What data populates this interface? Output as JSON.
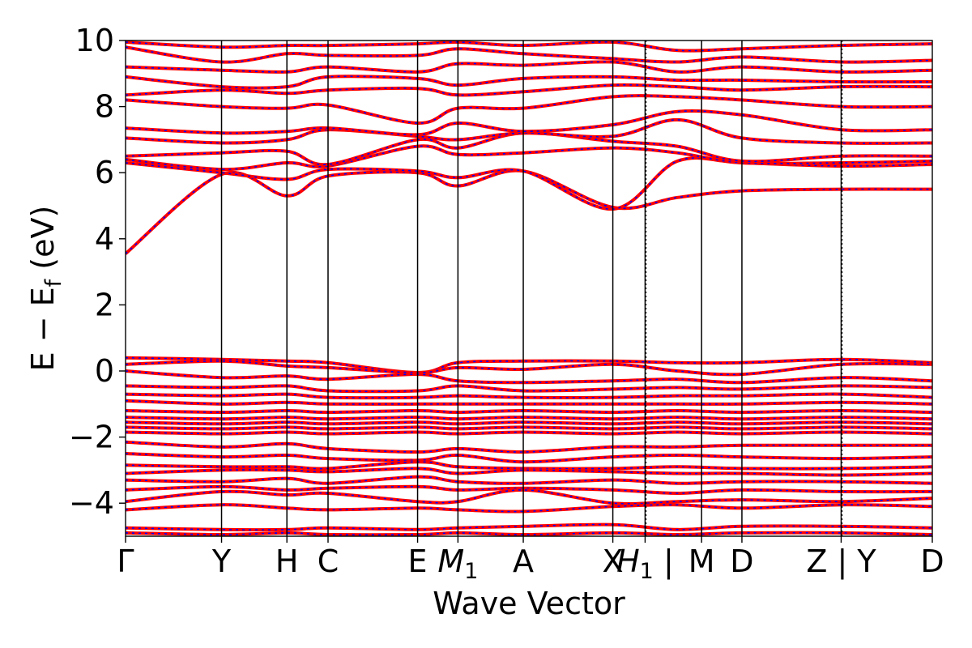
{
  "chart_data": {
    "type": "line",
    "title": "",
    "xlabel": "Wave Vector",
    "ylabel_main": "E − E",
    "ylabel_sub": "f",
    "ylabel_unit": "(eV)",
    "ylim": [
      -5,
      10
    ],
    "yticks": [
      10,
      8,
      6,
      4,
      2,
      0,
      -2,
      -4
    ],
    "ytick_labels": [
      "10",
      "8",
      "6",
      "4",
      "2",
      "0",
      "−2",
      "−4"
    ],
    "grid": false,
    "xticks": [
      {
        "label": "Γ",
        "pos": 0.0
      },
      {
        "label": "Y",
        "pos": 0.119
      },
      {
        "label": "H",
        "pos": 0.2
      },
      {
        "label": "C",
        "pos": 0.251
      },
      {
        "label": "E",
        "pos": 0.362
      },
      {
        "label": "M",
        "sub": "1",
        "italic": true,
        "pos": 0.412
      },
      {
        "label": "A",
        "pos": 0.493
      },
      {
        "label": "X",
        "pos": 0.604
      },
      {
        "label": "H",
        "sub": "1",
        "italic": true,
        "pos": 0.644,
        "plain_tail": " |",
        "separator": true
      },
      {
        "label": "M",
        "pos": 0.714,
        "sep_tick": true
      },
      {
        "label": "D",
        "pos": 0.764
      },
      {
        "label": "Z | Y",
        "pos": 0.887,
        "separator": true
      },
      {
        "label": "D",
        "pos": 1.0
      }
    ],
    "series": [
      {
        "color": "#ff0000",
        "style": "solid"
      },
      {
        "color": "#0000ff",
        "style": "dashed"
      }
    ],
    "bands": [
      {
        "x": [
          0.0,
          0.119,
          0.2,
          0.251,
          0.362,
          0.412,
          0.493,
          0.604,
          0.684,
          0.764,
          0.887,
          1.0
        ],
        "y": [
          3.55,
          5.95,
          5.3,
          5.9,
          6.0,
          5.6,
          6.05,
          4.95,
          5.25,
          5.45,
          5.5,
          5.5
        ]
      },
      {
        "x": [
          0.0,
          0.119,
          0.2,
          0.251,
          0.362,
          0.412,
          0.493,
          0.604,
          0.684,
          0.764,
          0.887,
          1.0
        ],
        "y": [
          6.3,
          6.0,
          5.8,
          6.1,
          6.05,
          5.85,
          6.05,
          4.9,
          6.35,
          6.3,
          6.2,
          6.25
        ]
      },
      {
        "x": [
          0.0,
          0.119,
          0.2,
          0.251,
          0.362,
          0.412,
          0.493,
          0.604,
          0.684,
          0.764,
          0.887,
          1.0
        ],
        "y": [
          6.4,
          6.1,
          6.3,
          6.2,
          6.8,
          6.55,
          6.6,
          6.75,
          6.6,
          6.3,
          6.3,
          6.35
        ]
      },
      {
        "x": [
          0.0,
          0.119,
          0.2,
          0.251,
          0.362,
          0.412,
          0.493,
          0.604,
          0.684,
          0.764,
          0.887,
          1.0
        ],
        "y": [
          6.5,
          6.6,
          6.65,
          6.25,
          7.0,
          6.75,
          7.2,
          6.95,
          6.8,
          6.35,
          6.5,
          6.5
        ]
      },
      {
        "x": [
          0.0,
          0.119,
          0.2,
          0.251,
          0.362,
          0.412,
          0.493,
          0.604,
          0.684,
          0.764,
          0.887,
          1.0
        ],
        "y": [
          7.05,
          6.9,
          7.0,
          7.3,
          7.1,
          7.0,
          7.2,
          7.1,
          7.6,
          7.05,
          6.9,
          6.9
        ]
      },
      {
        "x": [
          0.0,
          0.119,
          0.2,
          0.251,
          0.362,
          0.412,
          0.493,
          0.604,
          0.684,
          0.764,
          0.887,
          1.0
        ],
        "y": [
          7.35,
          7.2,
          7.25,
          7.35,
          7.15,
          7.5,
          7.25,
          7.45,
          7.85,
          7.75,
          7.3,
          7.3
        ]
      },
      {
        "x": [
          0.0,
          0.119,
          0.2,
          0.251,
          0.362,
          0.412,
          0.493,
          0.604,
          0.684,
          0.764,
          0.887,
          1.0
        ],
        "y": [
          8.2,
          8.0,
          7.95,
          8.05,
          7.5,
          7.95,
          7.95,
          8.3,
          8.3,
          8.2,
          8.0,
          8.0
        ]
      },
      {
        "x": [
          0.0,
          0.119,
          0.2,
          0.251,
          0.362,
          0.412,
          0.493,
          0.604,
          0.684,
          0.764,
          0.887,
          1.0
        ],
        "y": [
          8.35,
          8.5,
          8.4,
          8.5,
          8.55,
          8.35,
          8.45,
          8.65,
          8.6,
          8.5,
          8.6,
          8.6
        ]
      },
      {
        "x": [
          0.0,
          0.119,
          0.2,
          0.251,
          0.362,
          0.412,
          0.493,
          0.604,
          0.684,
          0.764,
          0.887,
          1.0
        ],
        "y": [
          8.9,
          8.6,
          8.6,
          8.9,
          8.85,
          8.65,
          8.85,
          8.9,
          8.8,
          8.8,
          8.75,
          8.75
        ]
      },
      {
        "x": [
          0.0,
          0.119,
          0.2,
          0.251,
          0.362,
          0.412,
          0.493,
          0.604,
          0.684,
          0.764,
          0.887,
          1.0
        ],
        "y": [
          9.2,
          9.1,
          9.05,
          9.2,
          9.05,
          9.3,
          9.25,
          9.35,
          9.05,
          9.2,
          9.05,
          9.1
        ]
      },
      {
        "x": [
          0.0,
          0.119,
          0.2,
          0.251,
          0.362,
          0.412,
          0.493,
          0.604,
          0.684,
          0.764,
          0.887,
          1.0
        ],
        "y": [
          9.8,
          9.35,
          9.6,
          9.55,
          9.55,
          9.75,
          9.6,
          9.45,
          9.35,
          9.5,
          9.35,
          9.4
        ]
      },
      {
        "x": [
          0.0,
          0.119,
          0.2,
          0.251,
          0.362,
          0.412,
          0.493,
          0.604,
          0.684,
          0.764,
          0.887,
          1.0
        ],
        "y": [
          9.95,
          9.8,
          9.85,
          9.85,
          9.9,
          9.95,
          9.85,
          9.95,
          9.7,
          9.75,
          9.85,
          9.9
        ]
      },
      {
        "x": [
          0.0,
          0.119,
          0.2,
          0.251,
          0.362,
          0.412,
          0.493,
          0.604,
          0.684,
          0.764,
          0.887,
          1.0
        ],
        "y": [
          0.4,
          0.35,
          0.3,
          0.25,
          -0.05,
          0.25,
          0.3,
          0.3,
          0.25,
          0.25,
          0.35,
          0.25
        ]
      },
      {
        "x": [
          0.0,
          0.119,
          0.2,
          0.251,
          0.362,
          0.412,
          0.493,
          0.604,
          0.684,
          0.764,
          0.887,
          1.0
        ],
        "y": [
          0.2,
          0.3,
          0.15,
          0.1,
          -0.05,
          0.1,
          0.05,
          0.2,
          0.0,
          -0.1,
          0.2,
          0.2
        ]
      },
      {
        "x": [
          0.0,
          0.119,
          0.2,
          0.251,
          0.362,
          0.412,
          0.493,
          0.604,
          0.684,
          0.764,
          0.887,
          1.0
        ],
        "y": [
          0.0,
          -0.2,
          -0.15,
          -0.25,
          -0.1,
          -0.3,
          -0.35,
          -0.3,
          -0.25,
          -0.35,
          -0.2,
          -0.3
        ]
      },
      {
        "x": [
          0.0,
          0.119,
          0.2,
          0.251,
          0.362,
          0.412,
          0.493,
          0.604,
          0.684,
          0.764,
          0.887,
          1.0
        ],
        "y": [
          -0.45,
          -0.5,
          -0.45,
          -0.6,
          -0.6,
          -0.45,
          -0.6,
          -0.55,
          -0.5,
          -0.55,
          -0.45,
          -0.5
        ]
      },
      {
        "x": [
          0.0,
          0.119,
          0.2,
          0.251,
          0.362,
          0.412,
          0.493,
          0.604,
          0.684,
          0.764,
          0.887,
          1.0
        ],
        "y": [
          -0.7,
          -0.75,
          -0.7,
          -0.8,
          -0.8,
          -0.75,
          -0.8,
          -0.8,
          -0.75,
          -0.75,
          -0.7,
          -0.8
        ]
      },
      {
        "x": [
          0.0,
          0.119,
          0.2,
          0.251,
          0.362,
          0.412,
          0.493,
          0.604,
          0.684,
          0.764,
          0.887,
          1.0
        ],
        "y": [
          -0.9,
          -1.0,
          -0.95,
          -1.0,
          -1.0,
          -1.0,
          -1.0,
          -1.0,
          -1.0,
          -1.0,
          -0.95,
          -1.0
        ]
      },
      {
        "x": [
          0.0,
          0.119,
          0.2,
          0.251,
          0.362,
          0.412,
          0.493,
          0.604,
          0.684,
          0.764,
          0.887,
          1.0
        ],
        "y": [
          -1.2,
          -1.25,
          -1.2,
          -1.25,
          -1.2,
          -1.25,
          -1.2,
          -1.25,
          -1.2,
          -1.25,
          -1.2,
          -1.25
        ]
      },
      {
        "x": [
          0.0,
          0.119,
          0.2,
          0.251,
          0.362,
          0.412,
          0.493,
          0.604,
          0.684,
          0.764,
          0.887,
          1.0
        ],
        "y": [
          -1.4,
          -1.45,
          -1.4,
          -1.45,
          -1.4,
          -1.45,
          -1.4,
          -1.45,
          -1.4,
          -1.45,
          -1.4,
          -1.45
        ]
      },
      {
        "x": [
          0.0,
          0.119,
          0.2,
          0.251,
          0.362,
          0.412,
          0.493,
          0.604,
          0.684,
          0.764,
          0.887,
          1.0
        ],
        "y": [
          -1.55,
          -1.6,
          -1.55,
          -1.6,
          -1.55,
          -1.6,
          -1.55,
          -1.6,
          -1.55,
          -1.6,
          -1.55,
          -1.6
        ]
      },
      {
        "x": [
          0.0,
          0.119,
          0.2,
          0.251,
          0.362,
          0.412,
          0.493,
          0.604,
          0.684,
          0.764,
          0.887,
          1.0
        ],
        "y": [
          -1.7,
          -1.75,
          -1.7,
          -1.75,
          -1.7,
          -1.75,
          -1.7,
          -1.75,
          -1.7,
          -1.75,
          -1.7,
          -1.75
        ]
      },
      {
        "x": [
          0.0,
          0.119,
          0.2,
          0.251,
          0.362,
          0.412,
          0.493,
          0.604,
          0.684,
          0.764,
          0.887,
          1.0
        ],
        "y": [
          -1.85,
          -1.9,
          -1.85,
          -1.9,
          -1.85,
          -1.9,
          -1.85,
          -1.9,
          -1.85,
          -1.9,
          -1.85,
          -1.9
        ]
      },
      {
        "x": [
          0.0,
          0.119,
          0.2,
          0.251,
          0.362,
          0.412,
          0.493,
          0.604,
          0.684,
          0.764,
          0.887,
          1.0
        ],
        "y": [
          -2.15,
          -2.3,
          -2.2,
          -2.35,
          -2.45,
          -2.35,
          -2.45,
          -2.3,
          -2.3,
          -2.25,
          -2.25,
          -2.25
        ]
      },
      {
        "x": [
          0.0,
          0.119,
          0.2,
          0.251,
          0.362,
          0.412,
          0.493,
          0.604,
          0.684,
          0.764,
          0.887,
          1.0
        ],
        "y": [
          -2.5,
          -2.6,
          -2.55,
          -2.65,
          -2.7,
          -2.55,
          -2.75,
          -2.6,
          -2.55,
          -2.6,
          -2.65,
          -2.6
        ]
      },
      {
        "x": [
          0.0,
          0.119,
          0.2,
          0.251,
          0.362,
          0.412,
          0.493,
          0.604,
          0.684,
          0.764,
          0.887,
          1.0
        ],
        "y": [
          -2.85,
          -2.9,
          -2.9,
          -2.95,
          -2.75,
          -2.9,
          -2.95,
          -2.95,
          -2.9,
          -2.95,
          -2.95,
          -2.9
        ]
      },
      {
        "x": [
          0.0,
          0.119,
          0.2,
          0.251,
          0.362,
          0.412,
          0.493,
          0.604,
          0.684,
          0.764,
          0.887,
          1.0
        ],
        "y": [
          -3.1,
          -3.0,
          -3.0,
          -3.05,
          -2.95,
          -3.1,
          -3.0,
          -3.05,
          -3.1,
          -3.1,
          -3.15,
          -3.1
        ]
      },
      {
        "x": [
          0.0,
          0.119,
          0.2,
          0.251,
          0.362,
          0.412,
          0.493,
          0.604,
          0.684,
          0.764,
          0.887,
          1.0
        ],
        "y": [
          -3.3,
          -3.35,
          -3.25,
          -3.4,
          -3.2,
          -3.35,
          -3.4,
          -3.3,
          -3.4,
          -3.35,
          -3.35,
          -3.4
        ]
      },
      {
        "x": [
          0.0,
          0.119,
          0.2,
          0.251,
          0.362,
          0.412,
          0.493,
          0.604,
          0.684,
          0.764,
          0.887,
          1.0
        ],
        "y": [
          -3.6,
          -3.5,
          -3.6,
          -3.55,
          -3.5,
          -3.6,
          -3.55,
          -3.6,
          -3.7,
          -3.6,
          -3.65,
          -3.65
        ]
      },
      {
        "x": [
          0.0,
          0.119,
          0.2,
          0.251,
          0.362,
          0.412,
          0.493,
          0.604,
          0.684,
          0.764,
          0.887,
          1.0
        ],
        "y": [
          -3.95,
          -3.65,
          -3.75,
          -3.7,
          -3.95,
          -3.95,
          -3.6,
          -4.0,
          -3.95,
          -3.9,
          -3.95,
          -3.85
        ]
      },
      {
        "x": [
          0.0,
          0.119,
          0.2,
          0.251,
          0.362,
          0.412,
          0.493,
          0.604,
          0.684,
          0.764,
          0.887,
          1.0
        ],
        "y": [
          -4.2,
          -4.05,
          -4.15,
          -4.2,
          -4.15,
          -4.2,
          -4.25,
          -4.1,
          -4.05,
          -4.15,
          -4.05,
          -4.1
        ]
      },
      {
        "x": [
          0.0,
          0.119,
          0.2,
          0.251,
          0.362,
          0.412,
          0.493,
          0.604,
          0.684,
          0.764,
          0.887,
          1.0
        ],
        "y": [
          -4.75,
          -4.8,
          -4.8,
          -4.75,
          -4.8,
          -4.75,
          -4.7,
          -4.65,
          -4.8,
          -4.7,
          -4.7,
          -4.75
        ]
      },
      {
        "x": [
          0.0,
          0.119,
          0.2,
          0.251,
          0.362,
          0.412,
          0.493,
          0.604,
          0.684,
          0.764,
          0.887,
          1.0
        ],
        "y": [
          -4.9,
          -4.95,
          -4.9,
          -4.95,
          -4.95,
          -4.9,
          -4.95,
          -4.9,
          -4.95,
          -4.9,
          -4.9,
          -4.95
        ]
      }
    ]
  }
}
